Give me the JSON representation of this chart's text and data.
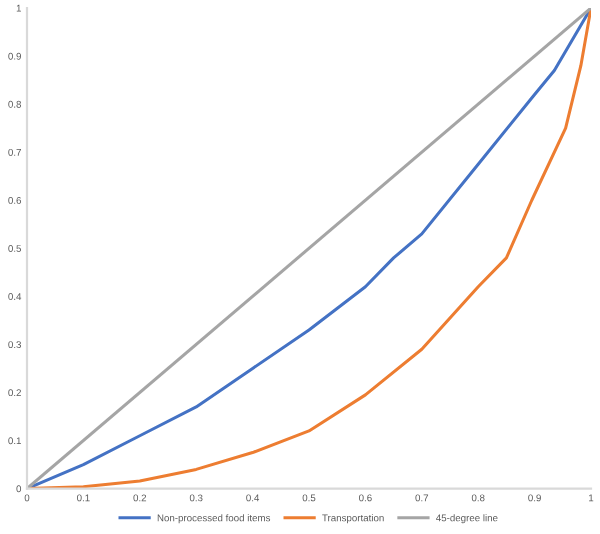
{
  "chart_data": {
    "type": "line",
    "xlim": [
      0,
      1
    ],
    "ylim": [
      0,
      1
    ],
    "xticks": [
      0,
      0.1,
      0.2,
      0.3,
      0.4,
      0.5,
      0.6,
      0.7,
      0.8,
      0.9,
      1
    ],
    "yticks": [
      0,
      0.1,
      0.2,
      0.3,
      0.4,
      0.5,
      0.6,
      0.7,
      0.8,
      0.9,
      1
    ],
    "grid": false,
    "legend": "bottom",
    "marker": "none",
    "line_style": "solid",
    "series": [
      {
        "name": "Non-processed food items",
        "color": "#4472c4",
        "x": [
          0,
          0.1,
          0.2,
          0.3,
          0.4,
          0.5,
          0.6,
          0.65,
          0.7,
          0.8,
          0.9,
          0.935,
          1
        ],
        "values": [
          0,
          0.05,
          0.11,
          0.17,
          0.25,
          0.33,
          0.42,
          0.48,
          0.53,
          0.675,
          0.82,
          0.87,
          1
        ]
      },
      {
        "name": "Transportation",
        "color": "#ed7d31",
        "x": [
          0,
          0.1,
          0.2,
          0.3,
          0.4,
          0.5,
          0.6,
          0.7,
          0.8,
          0.85,
          0.895,
          0.955,
          0.982,
          1
        ],
        "values": [
          0,
          0.004,
          0.016,
          0.04,
          0.075,
          0.12,
          0.195,
          0.29,
          0.42,
          0.48,
          0.6,
          0.75,
          0.88,
          1
        ]
      },
      {
        "name": "45-degree line",
        "color": "#a5a5a5",
        "x": [
          0,
          1
        ],
        "values": [
          0,
          1
        ]
      }
    ]
  }
}
